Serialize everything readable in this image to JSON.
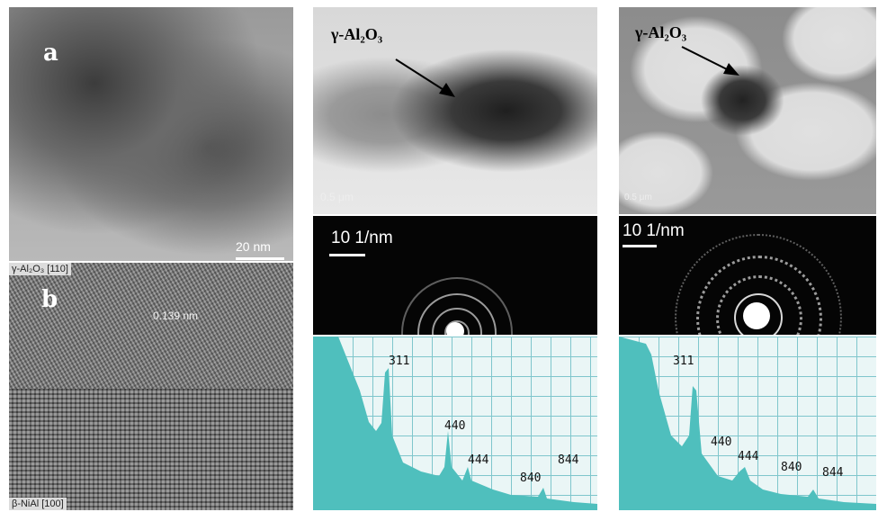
{
  "panel_left": {
    "letter_a": "a",
    "scale_a": "20 nm",
    "letter_b": "b",
    "tag_top": "γ-Al₂O₃ [110]",
    "spacing": "0.139 nm",
    "tag_bottom": "β-NiAl [100]"
  },
  "panel_mid": {
    "phase_label": "γ-Al₂O₃",
    "scale_tem": "0.5 μm",
    "scale_saed": "10 1/nm",
    "peaks": [
      "311",
      "440",
      "444",
      "840",
      "844"
    ]
  },
  "panel_right": {
    "phase_label": "γ-Al₂O₃",
    "scale_tem": "0.5 μm",
    "scale_saed": "10 1/nm",
    "peaks": [
      "311",
      "440",
      "444",
      "840",
      "844"
    ]
  },
  "colors": {
    "xrd_fill": "#4fbfbd",
    "xrd_grid": "#7fc6cc"
  }
}
